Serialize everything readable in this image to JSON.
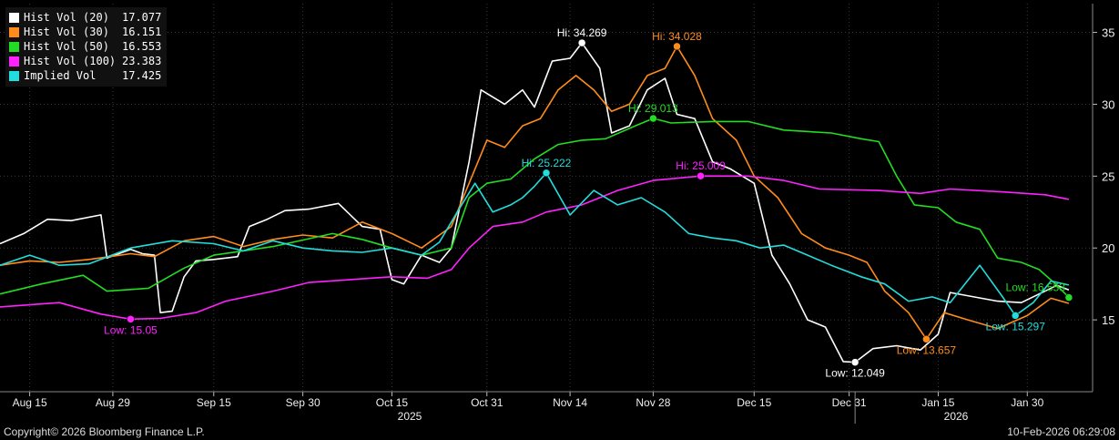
{
  "chart_data": {
    "type": "line",
    "x_axis": {
      "tick_labels": [
        "Aug 15",
        "Aug 29",
        "Sep 15",
        "Sep 30",
        "Oct 15",
        "Oct 31",
        "Nov 14",
        "Nov 28",
        "Dec 15",
        "Dec 31",
        "Jan 15",
        "Jan 30"
      ],
      "tick_dates": [
        "2025-08-15",
        "2025-08-29",
        "2025-09-15",
        "2025-09-30",
        "2025-10-15",
        "2025-10-31",
        "2025-11-14",
        "2025-11-28",
        "2025-12-15",
        "2025-12-31",
        "2026-01-15",
        "2026-01-30"
      ],
      "years": [
        {
          "label": "2025",
          "date": "2025-10-18"
        },
        {
          "label": "2026",
          "date": "2026-01-18"
        }
      ],
      "year_boundary": "2026-01-01",
      "xlim": [
        "2025-08-10",
        "2026-02-10"
      ]
    },
    "y_axis": {
      "position": "right",
      "ticks": [
        15,
        20,
        25,
        30,
        35
      ],
      "ylim": [
        10,
        37
      ]
    },
    "series": [
      {
        "name": "Hist Vol (20)",
        "last": "17.077",
        "color": "#ffffff",
        "points": [
          [
            "2025-08-10",
            20.3
          ],
          [
            "2025-08-14",
            21.0
          ],
          [
            "2025-08-18",
            22.0
          ],
          [
            "2025-08-22",
            21.9
          ],
          [
            "2025-08-27",
            22.3
          ],
          [
            "2025-08-28",
            19.3
          ],
          [
            "2025-09-01",
            19.9
          ],
          [
            "2025-09-03",
            19.6
          ],
          [
            "2025-09-05",
            19.5
          ],
          [
            "2025-09-06",
            15.5
          ],
          [
            "2025-09-08",
            15.6
          ],
          [
            "2025-09-10",
            18.0
          ],
          [
            "2025-09-12",
            19.1
          ],
          [
            "2025-09-15",
            19.2
          ],
          [
            "2025-09-19",
            19.4
          ],
          [
            "2025-09-21",
            21.5
          ],
          [
            "2025-09-24",
            22.0
          ],
          [
            "2025-09-27",
            22.6
          ],
          [
            "2025-10-01",
            22.7
          ],
          [
            "2025-10-06",
            23.1
          ],
          [
            "2025-10-10",
            21.5
          ],
          [
            "2025-10-13",
            21.3
          ],
          [
            "2025-10-15",
            17.8
          ],
          [
            "2025-10-17",
            17.5
          ],
          [
            "2025-10-20",
            19.5
          ],
          [
            "2025-10-23",
            19.0
          ],
          [
            "2025-10-25",
            20.0
          ],
          [
            "2025-10-28",
            26.0
          ],
          [
            "2025-10-30",
            31.0
          ],
          [
            "2025-11-03",
            30.0
          ],
          [
            "2025-11-06",
            31.0
          ],
          [
            "2025-11-08",
            29.8
          ],
          [
            "2025-11-11",
            33.0
          ],
          [
            "2025-11-14",
            33.2
          ],
          [
            "2025-11-16",
            34.269
          ],
          [
            "2025-11-19",
            32.5
          ],
          [
            "2025-11-21",
            28.0
          ],
          [
            "2025-11-24",
            28.5
          ],
          [
            "2025-11-27",
            31.0
          ],
          [
            "2025-11-30",
            31.8
          ],
          [
            "2025-12-02",
            29.3
          ],
          [
            "2025-12-05",
            29.0
          ],
          [
            "2025-12-08",
            26.0
          ],
          [
            "2025-12-11",
            25.5
          ],
          [
            "2025-12-15",
            24.5
          ],
          [
            "2025-12-18",
            19.5
          ],
          [
            "2025-12-21",
            17.5
          ],
          [
            "2025-12-24",
            15.0
          ],
          [
            "2025-12-27",
            14.5
          ],
          [
            "2025-12-30",
            12.1
          ],
          [
            "2026-01-01",
            12.049
          ],
          [
            "2026-01-04",
            13.0
          ],
          [
            "2026-01-08",
            13.2
          ],
          [
            "2026-01-12",
            12.9
          ],
          [
            "2026-01-15",
            14.0
          ],
          [
            "2026-01-17",
            16.9
          ],
          [
            "2026-01-21",
            16.6
          ],
          [
            "2026-01-25",
            16.3
          ],
          [
            "2026-01-29",
            16.2
          ],
          [
            "2026-02-01",
            16.8
          ],
          [
            "2026-02-04",
            17.4
          ],
          [
            "2026-02-06",
            17.077
          ]
        ]
      },
      {
        "name": "Hist Vol (30)",
        "last": "16.151",
        "color": "#ff8c1a",
        "points": [
          [
            "2025-08-10",
            18.8
          ],
          [
            "2025-08-15",
            19.1
          ],
          [
            "2025-08-20",
            19.0
          ],
          [
            "2025-08-25",
            19.2
          ],
          [
            "2025-09-01",
            19.6
          ],
          [
            "2025-09-05",
            19.4
          ],
          [
            "2025-09-10",
            20.5
          ],
          [
            "2025-09-15",
            20.8
          ],
          [
            "2025-09-20",
            20.1
          ],
          [
            "2025-09-25",
            20.6
          ],
          [
            "2025-09-30",
            20.9
          ],
          [
            "2025-10-05",
            20.7
          ],
          [
            "2025-10-10",
            21.8
          ],
          [
            "2025-10-15",
            21.0
          ],
          [
            "2025-10-20",
            20.0
          ],
          [
            "2025-10-25",
            21.5
          ],
          [
            "2025-10-28",
            24.5
          ],
          [
            "2025-10-31",
            27.5
          ],
          [
            "2025-11-03",
            27.0
          ],
          [
            "2025-11-06",
            28.5
          ],
          [
            "2025-11-09",
            29.0
          ],
          [
            "2025-11-12",
            31.0
          ],
          [
            "2025-11-15",
            32.0
          ],
          [
            "2025-11-18",
            31.0
          ],
          [
            "2025-11-21",
            29.5
          ],
          [
            "2025-11-24",
            30.0
          ],
          [
            "2025-11-27",
            32.0
          ],
          [
            "2025-11-30",
            32.5
          ],
          [
            "2025-12-02",
            34.028
          ],
          [
            "2025-12-05",
            32.0
          ],
          [
            "2025-12-08",
            29.0
          ],
          [
            "2025-12-12",
            27.5
          ],
          [
            "2025-12-15",
            25.0
          ],
          [
            "2025-12-19",
            23.5
          ],
          [
            "2025-12-23",
            21.0
          ],
          [
            "2025-12-27",
            20.0
          ],
          [
            "2025-12-31",
            19.5
          ],
          [
            "2026-01-03",
            19.0
          ],
          [
            "2026-01-06",
            17.0
          ],
          [
            "2026-01-10",
            15.5
          ],
          [
            "2026-01-13",
            13.657
          ],
          [
            "2026-01-16",
            15.5
          ],
          [
            "2026-01-20",
            15.0
          ],
          [
            "2026-01-25",
            14.4
          ],
          [
            "2026-01-30",
            15.3
          ],
          [
            "2026-02-03",
            16.5
          ],
          [
            "2026-02-06",
            16.151
          ]
        ]
      },
      {
        "name": "Hist Vol (50)",
        "last": "16.553",
        "color": "#22dd22",
        "points": [
          [
            "2025-08-10",
            16.8
          ],
          [
            "2025-08-17",
            17.5
          ],
          [
            "2025-08-24",
            18.1
          ],
          [
            "2025-08-28",
            17.0
          ],
          [
            "2025-09-04",
            17.2
          ],
          [
            "2025-09-10",
            18.6
          ],
          [
            "2025-09-15",
            19.5
          ],
          [
            "2025-09-25",
            20.1
          ],
          [
            "2025-10-05",
            21.0
          ],
          [
            "2025-10-10",
            20.6
          ],
          [
            "2025-10-15",
            20.0
          ],
          [
            "2025-10-20",
            19.5
          ],
          [
            "2025-10-25",
            20.0
          ],
          [
            "2025-10-28",
            23.5
          ],
          [
            "2025-10-31",
            24.5
          ],
          [
            "2025-11-04",
            24.8
          ],
          [
            "2025-11-08",
            26.2
          ],
          [
            "2025-11-12",
            27.2
          ],
          [
            "2025-11-16",
            27.5
          ],
          [
            "2025-11-20",
            27.6
          ],
          [
            "2025-11-25",
            28.5
          ],
          [
            "2025-11-28",
            29.013
          ],
          [
            "2025-12-01",
            28.7
          ],
          [
            "2025-12-08",
            28.8
          ],
          [
            "2025-12-14",
            28.8
          ],
          [
            "2025-12-20",
            28.2
          ],
          [
            "2025-12-28",
            28.0
          ],
          [
            "2026-01-02",
            27.6
          ],
          [
            "2026-01-05",
            27.4
          ],
          [
            "2026-01-08",
            25.0
          ],
          [
            "2026-01-11",
            23.0
          ],
          [
            "2026-01-15",
            22.8
          ],
          [
            "2026-01-18",
            21.8
          ],
          [
            "2026-01-22",
            21.3
          ],
          [
            "2026-01-25",
            19.3
          ],
          [
            "2026-01-29",
            19.0
          ],
          [
            "2026-02-01",
            18.5
          ],
          [
            "2026-02-04",
            17.4
          ],
          [
            "2026-02-06",
            16.553
          ]
        ]
      },
      {
        "name": "Hist Vol (100)",
        "last": "23.383",
        "color": "#ff22ff",
        "points": [
          [
            "2025-08-10",
            15.9
          ],
          [
            "2025-08-20",
            16.2
          ],
          [
            "2025-08-27",
            15.4
          ],
          [
            "2025-09-01",
            15.05
          ],
          [
            "2025-09-06",
            15.1
          ],
          [
            "2025-09-12",
            15.5
          ],
          [
            "2025-09-17",
            16.3
          ],
          [
            "2025-09-25",
            17.0
          ],
          [
            "2025-10-01",
            17.6
          ],
          [
            "2025-10-15",
            18.0
          ],
          [
            "2025-10-21",
            17.9
          ],
          [
            "2025-10-25",
            18.5
          ],
          [
            "2025-10-28",
            20.0
          ],
          [
            "2025-11-01",
            21.5
          ],
          [
            "2025-11-06",
            21.8
          ],
          [
            "2025-11-10",
            22.5
          ],
          [
            "2025-11-16",
            23.0
          ],
          [
            "2025-11-22",
            24.0
          ],
          [
            "2025-11-28",
            24.7
          ],
          [
            "2025-12-06",
            25.009
          ],
          [
            "2025-12-14",
            25.0
          ],
          [
            "2025-12-20",
            24.7
          ],
          [
            "2025-12-26",
            24.1
          ],
          [
            "2026-01-05",
            24.0
          ],
          [
            "2026-01-12",
            23.8
          ],
          [
            "2026-01-17",
            24.1
          ],
          [
            "2026-01-26",
            23.9
          ],
          [
            "2026-02-02",
            23.7
          ],
          [
            "2026-02-06",
            23.383
          ]
        ]
      },
      {
        "name": "Implied Vol",
        "last": "17.425",
        "color": "#22dddd",
        "points": [
          [
            "2025-08-10",
            18.8
          ],
          [
            "2025-08-15",
            19.5
          ],
          [
            "2025-08-20",
            18.8
          ],
          [
            "2025-08-25",
            18.9
          ],
          [
            "2025-09-01",
            20.0
          ],
          [
            "2025-09-08",
            20.5
          ],
          [
            "2025-09-15",
            20.3
          ],
          [
            "2025-09-20",
            19.8
          ],
          [
            "2025-09-25",
            20.5
          ],
          [
            "2025-09-30",
            20.0
          ],
          [
            "2025-10-05",
            19.8
          ],
          [
            "2025-10-10",
            19.7
          ],
          [
            "2025-10-15",
            20.0
          ],
          [
            "2025-10-20",
            19.5
          ],
          [
            "2025-10-23",
            20.4
          ],
          [
            "2025-10-26",
            22.5
          ],
          [
            "2025-10-29",
            24.5
          ],
          [
            "2025-11-01",
            22.5
          ],
          [
            "2025-11-04",
            23.0
          ],
          [
            "2025-11-06",
            23.5
          ],
          [
            "2025-11-08",
            24.3
          ],
          [
            "2025-11-10",
            25.222
          ],
          [
            "2025-11-14",
            22.3
          ],
          [
            "2025-11-18",
            24.0
          ],
          [
            "2025-11-22",
            23.0
          ],
          [
            "2025-11-26",
            23.5
          ],
          [
            "2025-11-30",
            22.5
          ],
          [
            "2025-12-04",
            21.0
          ],
          [
            "2025-12-08",
            20.7
          ],
          [
            "2025-12-12",
            20.5
          ],
          [
            "2025-12-16",
            20.0
          ],
          [
            "2025-12-20",
            20.2
          ],
          [
            "2025-12-24",
            19.5
          ],
          [
            "2025-12-28",
            18.8
          ],
          [
            "2026-01-02",
            18.0
          ],
          [
            "2026-01-06",
            17.5
          ],
          [
            "2026-01-10",
            16.3
          ],
          [
            "2026-01-14",
            16.6
          ],
          [
            "2026-01-17",
            16.2
          ],
          [
            "2026-01-22",
            18.8
          ],
          [
            "2026-01-26",
            16.5
          ],
          [
            "2026-01-28",
            15.297
          ],
          [
            "2026-01-31",
            16.2
          ],
          [
            "2026-02-03",
            17.7
          ],
          [
            "2026-02-06",
            17.425
          ]
        ]
      }
    ],
    "annotations": [
      {
        "text": "Hi: 34.269",
        "series": 0,
        "date": "2025-11-16",
        "value": 34.269,
        "pos": "above"
      },
      {
        "text": "Hi: 34.028",
        "series": 1,
        "date": "2025-12-02",
        "value": 34.028,
        "pos": "above"
      },
      {
        "text": "Hi: 29.013",
        "series": 2,
        "date": "2025-11-28",
        "value": 29.013,
        "pos": "above"
      },
      {
        "text": "Hi: 25.222",
        "series": 4,
        "date": "2025-11-10",
        "value": 25.222,
        "pos": "above"
      },
      {
        "text": "Hi: 25.009",
        "series": 3,
        "date": "2025-12-06",
        "value": 25.009,
        "pos": "above"
      },
      {
        "text": "Low: 15.05",
        "series": 3,
        "date": "2025-09-01",
        "value": 15.05,
        "pos": "below"
      },
      {
        "text": "Low: 12.049",
        "series": 0,
        "date": "2026-01-01",
        "value": 12.049,
        "pos": "below"
      },
      {
        "text": "Low: 13.657",
        "series": 1,
        "date": "2026-01-13",
        "value": 13.657,
        "pos": "below"
      },
      {
        "text": "Low: 15.297",
        "series": 4,
        "date": "2026-01-28",
        "value": 15.297,
        "pos": "below"
      },
      {
        "text": "Low: 16.553",
        "series": 2,
        "date": "2026-02-06",
        "value": 16.553,
        "pos": "above-left"
      }
    ],
    "grid": true,
    "legend_position": "top-left"
  },
  "footer": {
    "copyright": "Copyright© 2026 Bloomberg Finance L.P.",
    "timestamp": "10-Feb-2026 06:29:08"
  }
}
